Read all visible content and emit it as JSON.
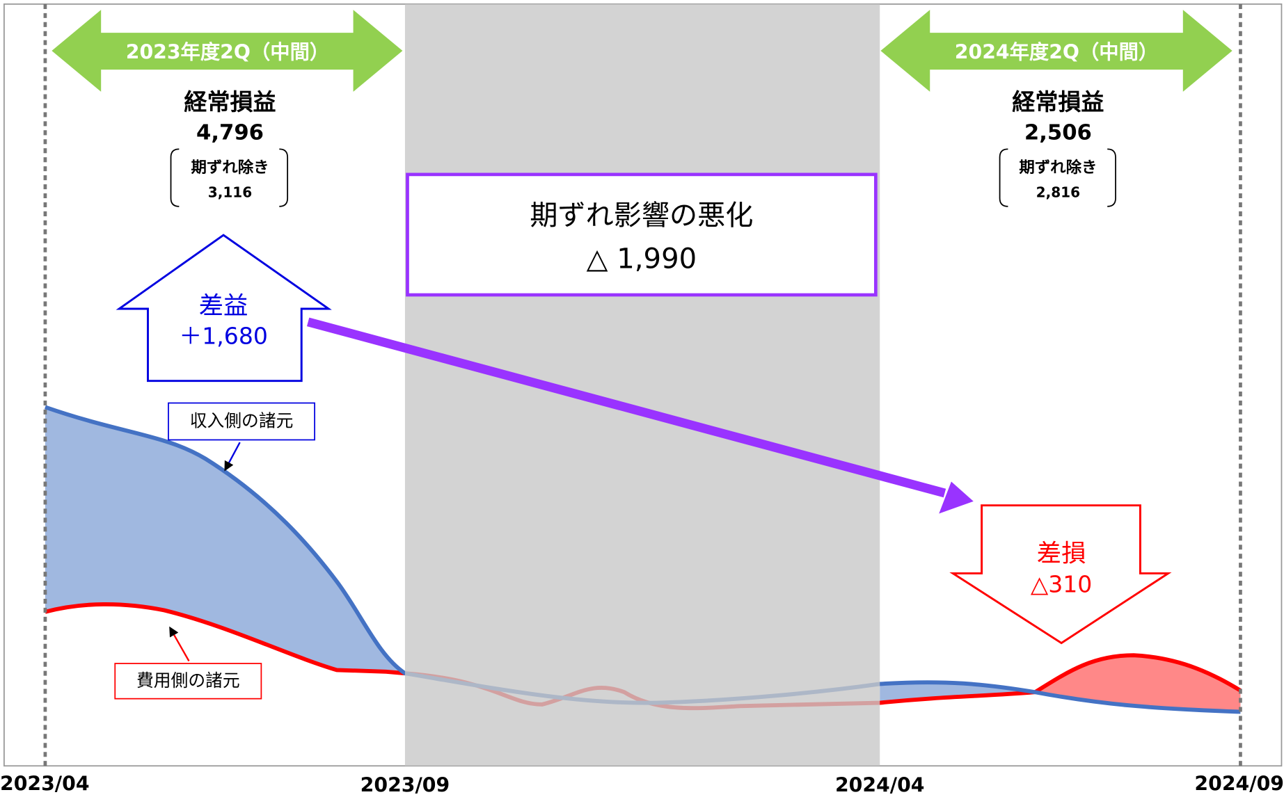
{
  "periods": [
    {
      "label": "2023年度2Q（中間）",
      "heading": "経常損益",
      "value": "4,796",
      "note_label": "期ずれ除き",
      "note_value": "3,116"
    },
    {
      "label": "2024年度2Q（中間）",
      "heading": "経常損益",
      "value": "2,506",
      "note_label": "期ずれ除き",
      "note_value": "2,816"
    }
  ],
  "center_box": {
    "title": "期ずれ影響の悪化",
    "value": "△ 1,990"
  },
  "gain": {
    "title": "差益",
    "value": "＋1,680"
  },
  "loss": {
    "title": "差損",
    "value": "△310"
  },
  "labels": {
    "revenue": "収入側の諸元",
    "cost": "費用側の諸元"
  },
  "x_axis": [
    "2023/04",
    "2023/09",
    "2024/04",
    "2024/09"
  ]
}
